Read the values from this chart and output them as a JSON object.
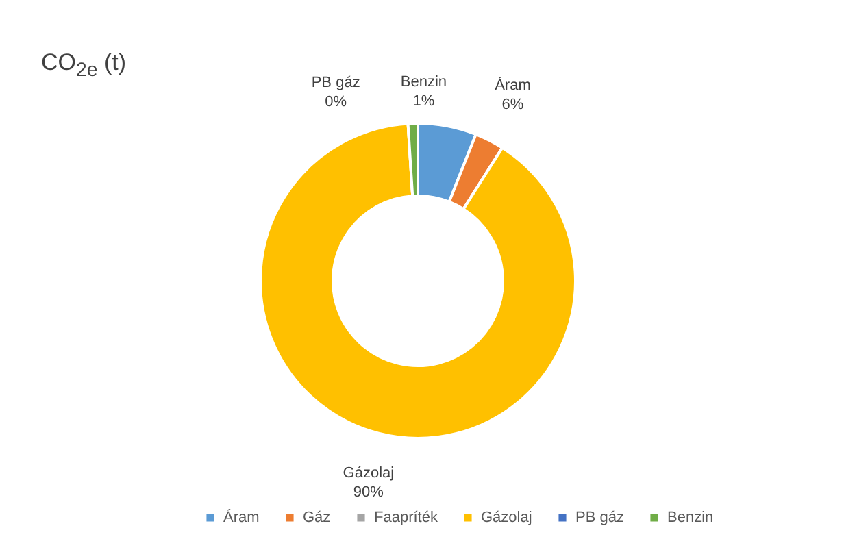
{
  "chart_data": {
    "type": "donut",
    "title": "CO$_{2e}$ (t)",
    "categories": [
      "Áram",
      "Gáz",
      "Faapríték",
      "Gázolaj",
      "PB gáz",
      "Benzin"
    ],
    "values": [
      6,
      3,
      0,
      90,
      0,
      1
    ],
    "colors": [
      "#5b9bd5",
      "#ed7d31",
      "#a5a5a5",
      "#ffc000",
      "#4472c4",
      "#70ad47"
    ],
    "value_labels": [
      "6%",
      null,
      null,
      "90%",
      "0%",
      "1%"
    ],
    "legend": "bottom"
  }
}
